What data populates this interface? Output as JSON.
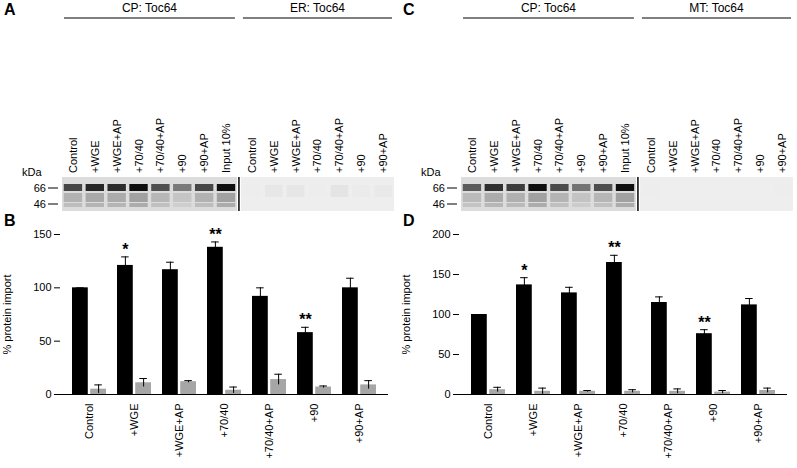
{
  "panels": [
    {
      "letter": "A",
      "gel": {
        "unit": "kDa",
        "markers": [
          66,
          46
        ],
        "groups": [
          {
            "title": "CP: Toc64",
            "lanes": [
              "Control",
              "+WGE",
              "+WGE+AP",
              "+70/40",
              "+70/40+AP",
              "+90",
              "+90+AP",
              "Input 10%"
            ]
          },
          {
            "title": "ER: Toc64",
            "lanes": [
              "Control",
              "+WGE",
              "+WGE+AP",
              "+70/40",
              "+70/40+AP",
              "+90",
              "+90+AP"
            ]
          }
        ]
      }
    },
    {
      "letter": "C",
      "gel": {
        "unit": "kDa",
        "markers": [
          66,
          46
        ],
        "groups": [
          {
            "title": "CP: Toc64",
            "lanes": [
              "Control",
              "+WGE",
              "+WGE+AP",
              "+70/40",
              "+70/40+AP",
              "+90",
              "+90+AP",
              "Input 10%"
            ]
          },
          {
            "title": "MT: Toc64",
            "lanes": [
              "Control",
              "+WGE",
              "+WGE+AP",
              "+70/40",
              "+70/40+AP",
              "+90",
              "+90+AP"
            ]
          }
        ]
      }
    }
  ],
  "chart_data": [
    {
      "type": "bar",
      "panel_label": "B",
      "y_label": "% protein import",
      "categories": [
        "Control",
        "+WGE",
        "+WGE+AP",
        "+70/40",
        "+70/40+AP",
        "+90",
        "+90+AP"
      ],
      "series": [
        {
          "color": "#000000",
          "values": [
            100,
            121,
            117,
            138,
            92,
            58,
            100
          ],
          "errors": [
            0,
            8,
            7,
            5,
            8,
            5,
            9
          ]
        },
        {
          "color": "#a6a6a6",
          "values": [
            5,
            11,
            12,
            4,
            14,
            7,
            9
          ],
          "errors": [
            4,
            4,
            1,
            3,
            5,
            1,
            4
          ]
        }
      ],
      "ylim": [
        0,
        150
      ],
      "yticks": [
        0,
        50,
        100,
        150
      ],
      "annotations": [
        {
          "category": "+WGE",
          "text": "*"
        },
        {
          "category": "+70/40",
          "text": "**"
        },
        {
          "category": "+90",
          "text": "**"
        }
      ]
    },
    {
      "type": "bar",
      "panel_label": "D",
      "y_label": "% protein import",
      "categories": [
        "Control",
        "+WGE",
        "+WGE+AP",
        "+70/40",
        "+70/40+AP",
        "+90",
        "+90+AP"
      ],
      "series": [
        {
          "color": "#000000",
          "values": [
            100,
            137,
            127,
            165,
            115,
            76,
            112
          ],
          "errors": [
            0,
            9,
            7,
            9,
            7,
            5,
            8
          ]
        },
        {
          "color": "#a6a6a6",
          "values": [
            6,
            4,
            4,
            4,
            4,
            3,
            5
          ],
          "errors": [
            3,
            4,
            1,
            2,
            3,
            2,
            3
          ]
        }
      ],
      "ylim": [
        0,
        200
      ],
      "yticks": [
        0,
        50,
        100,
        150,
        200
      ],
      "annotations": [
        {
          "category": "+WGE",
          "text": "*"
        },
        {
          "category": "+70/40",
          "text": "**"
        },
        {
          "category": "+90",
          "text": "**"
        }
      ]
    }
  ]
}
